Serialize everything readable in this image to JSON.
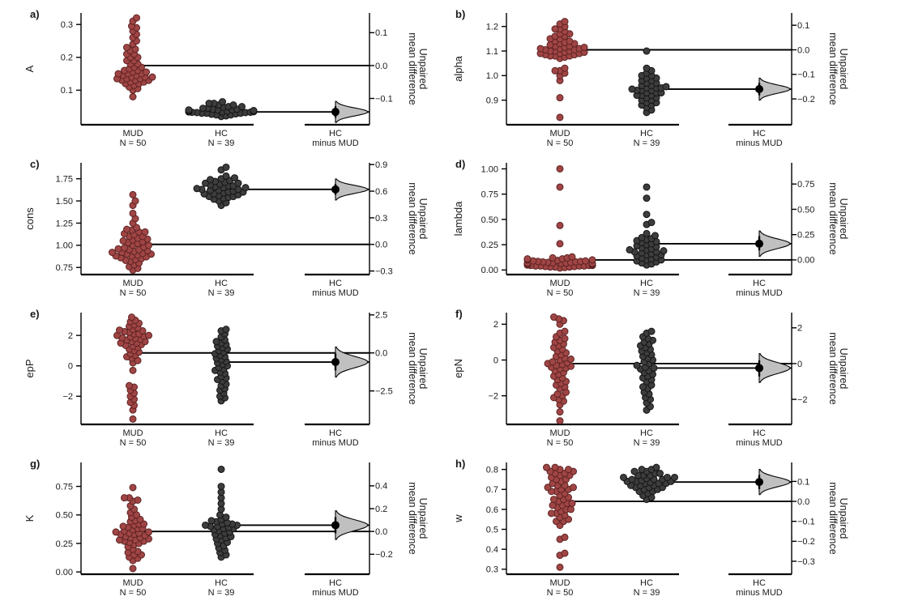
{
  "figure": {
    "right_axis_label_line1": "Unpaired",
    "right_axis_label_line2": "mean difference",
    "x_groups": [
      {
        "label": "MUD",
        "sublabel": "N = 50"
      },
      {
        "label": "HC",
        "sublabel": "N = 39"
      },
      {
        "label": "HC",
        "sublabel": "minus MUD"
      }
    ],
    "colors": {
      "mud_fill": "#a04545",
      "mud_stroke": "#5e2323",
      "hc_fill": "#3d3d3d",
      "hc_stroke": "#151515",
      "violin_fill": "#c0c0c0",
      "line": "#000000",
      "text": "#1a1a1a"
    }
  },
  "chart_data": [
    {
      "panel": "a)",
      "type": "swarm-estimation",
      "ylabel": "A",
      "ylim": [
        -0.005,
        0.335
      ],
      "yticks": [
        0.1,
        0.2,
        0.3
      ],
      "ytick_dec": 1,
      "right_ticks": [
        0.1,
        0.0,
        -0.1
      ],
      "rtick_dec": 1,
      "mud_mean": 0.175,
      "hc_mean": 0.034,
      "diff": -0.141,
      "diff_ci": [
        -0.158,
        -0.124
      ],
      "mud_values": [
        0.08,
        0.1,
        0.105,
        0.11,
        0.115,
        0.12,
        0.12,
        0.125,
        0.125,
        0.13,
        0.13,
        0.13,
        0.135,
        0.135,
        0.135,
        0.14,
        0.14,
        0.14,
        0.145,
        0.145,
        0.15,
        0.15,
        0.15,
        0.155,
        0.155,
        0.16,
        0.16,
        0.165,
        0.17,
        0.17,
        0.18,
        0.18,
        0.19,
        0.19,
        0.2,
        0.2,
        0.21,
        0.21,
        0.22,
        0.225,
        0.23,
        0.24,
        0.25,
        0.26,
        0.27,
        0.28,
        0.29,
        0.295,
        0.31,
        0.32
      ],
      "hc_values": [
        0.02,
        0.022,
        0.025,
        0.025,
        0.027,
        0.028,
        0.03,
        0.03,
        0.03,
        0.032,
        0.032,
        0.033,
        0.033,
        0.034,
        0.034,
        0.035,
        0.035,
        0.035,
        0.036,
        0.036,
        0.037,
        0.037,
        0.038,
        0.038,
        0.04,
        0.04,
        0.04,
        0.042,
        0.042,
        0.045,
        0.045,
        0.048,
        0.05,
        0.05,
        0.055,
        0.055,
        0.06,
        0.06,
        0.065
      ]
    },
    {
      "panel": "b)",
      "type": "swarm-estimation",
      "ylabel": "alpha",
      "ylim": [
        0.8,
        1.255
      ],
      "yticks": [
        0.9,
        1.0,
        1.1,
        1.2
      ],
      "ytick_dec": 1,
      "right_ticks": [
        0.1,
        0.0,
        -0.1,
        -0.2
      ],
      "rtick_dec": 1,
      "mud_mean": 1.105,
      "hc_mean": 0.945,
      "diff": -0.16,
      "diff_ci": [
        -0.185,
        -0.135
      ],
      "mud_values": [
        0.83,
        0.91,
        0.98,
        1.0,
        1.01,
        1.02,
        1.02,
        1.03,
        1.07,
        1.075,
        1.08,
        1.08,
        1.08,
        1.085,
        1.085,
        1.09,
        1.09,
        1.09,
        1.095,
        1.095,
        1.1,
        1.1,
        1.1,
        1.105,
        1.105,
        1.11,
        1.11,
        1.11,
        1.115,
        1.115,
        1.12,
        1.12,
        1.125,
        1.13,
        1.13,
        1.135,
        1.14,
        1.14,
        1.15,
        1.15,
        1.16,
        1.16,
        1.17,
        1.17,
        1.18,
        1.19,
        1.19,
        1.2,
        1.21,
        1.22
      ],
      "hc_values": [
        0.85,
        0.86,
        0.87,
        0.88,
        0.88,
        0.89,
        0.89,
        0.9,
        0.9,
        0.91,
        0.91,
        0.92,
        0.92,
        0.92,
        0.93,
        0.93,
        0.93,
        0.94,
        0.94,
        0.94,
        0.945,
        0.95,
        0.95,
        0.95,
        0.955,
        0.96,
        0.96,
        0.97,
        0.97,
        0.98,
        0.98,
        0.99,
        0.99,
        1.0,
        1.0,
        1.01,
        1.02,
        1.03,
        1.1
      ]
    },
    {
      "panel": "c)",
      "type": "swarm-estimation",
      "ylabel": "cons",
      "ylim": [
        0.67,
        1.93
      ],
      "yticks": [
        0.75,
        1.0,
        1.25,
        1.5,
        1.75
      ],
      "ytick_dec": 2,
      "right_ticks": [
        0.9,
        0.6,
        0.3,
        0.0,
        -0.3
      ],
      "rtick_dec": 1,
      "mud_mean": 1.01,
      "hc_mean": 1.63,
      "diff": 0.62,
      "diff_ci": [
        0.56,
        0.68
      ],
      "mud_values": [
        0.72,
        0.74,
        0.76,
        0.78,
        0.8,
        0.82,
        0.83,
        0.84,
        0.85,
        0.86,
        0.87,
        0.88,
        0.88,
        0.89,
        0.9,
        0.9,
        0.91,
        0.92,
        0.92,
        0.93,
        0.94,
        0.95,
        0.95,
        0.96,
        0.97,
        0.98,
        1.0,
        1.0,
        1.02,
        1.03,
        1.04,
        1.05,
        1.06,
        1.07,
        1.08,
        1.1,
        1.1,
        1.12,
        1.13,
        1.15,
        1.15,
        1.17,
        1.18,
        1.2,
        1.25,
        1.3,
        1.36,
        1.45,
        1.5,
        1.57
      ],
      "hc_values": [
        1.45,
        1.48,
        1.5,
        1.52,
        1.53,
        1.54,
        1.55,
        1.55,
        1.56,
        1.57,
        1.58,
        1.58,
        1.59,
        1.6,
        1.6,
        1.61,
        1.62,
        1.62,
        1.63,
        1.63,
        1.64,
        1.65,
        1.65,
        1.66,
        1.67,
        1.67,
        1.68,
        1.69,
        1.7,
        1.7,
        1.71,
        1.72,
        1.73,
        1.74,
        1.75,
        1.76,
        1.78,
        1.85,
        1.88
      ]
    },
    {
      "panel": "d)",
      "type": "swarm-estimation",
      "ylabel": "lambda",
      "ylim": [
        -0.045,
        1.06
      ],
      "yticks": [
        0.0,
        0.25,
        0.5,
        0.75,
        1.0
      ],
      "ytick_dec": 2,
      "right_ticks": [
        0.75,
        0.5,
        0.25,
        0.0
      ],
      "rtick_dec": 2,
      "mud_mean": 0.1,
      "hc_mean": 0.26,
      "diff": 0.16,
      "diff_ci": [
        0.095,
        0.235
      ],
      "mud_values": [
        0.02,
        0.025,
        0.03,
        0.03,
        0.03,
        0.035,
        0.035,
        0.04,
        0.04,
        0.04,
        0.04,
        0.045,
        0.045,
        0.045,
        0.05,
        0.05,
        0.05,
        0.05,
        0.055,
        0.055,
        0.055,
        0.06,
        0.06,
        0.06,
        0.065,
        0.065,
        0.07,
        0.07,
        0.07,
        0.075,
        0.075,
        0.08,
        0.08,
        0.085,
        0.085,
        0.09,
        0.09,
        0.095,
        0.1,
        0.1,
        0.105,
        0.11,
        0.11,
        0.12,
        0.12,
        0.13,
        0.26,
        0.44,
        0.82,
        1.0
      ],
      "hc_values": [
        0.05,
        0.06,
        0.07,
        0.08,
        0.09,
        0.1,
        0.1,
        0.11,
        0.12,
        0.13,
        0.14,
        0.15,
        0.15,
        0.16,
        0.17,
        0.18,
        0.18,
        0.19,
        0.2,
        0.2,
        0.21,
        0.22,
        0.23,
        0.24,
        0.25,
        0.26,
        0.27,
        0.28,
        0.29,
        0.3,
        0.31,
        0.32,
        0.34,
        0.36,
        0.45,
        0.47,
        0.55,
        0.71,
        0.82
      ]
    },
    {
      "panel": "e)",
      "type": "swarm-estimation",
      "ylabel": "epP",
      "ylim": [
        -3.85,
        3.5
      ],
      "yticks": [
        -2,
        0,
        2
      ],
      "ytick_dec": 0,
      "right_ticks": [
        2.5,
        0.0,
        -2.5
      ],
      "rtick_dec": 1,
      "mud_mean": 0.85,
      "hc_mean": 0.25,
      "diff": -0.6,
      "diff_ci": [
        -1.15,
        -0.05
      ],
      "mud_values": [
        -3.5,
        -2.9,
        -2.6,
        -2.4,
        -2.2,
        -2.0,
        -1.8,
        -1.6,
        -1.4,
        -1.3,
        -0.3,
        0.2,
        0.35,
        0.5,
        0.6,
        0.7,
        0.8,
        0.9,
        1.0,
        1.1,
        1.2,
        1.3,
        1.35,
        1.4,
        1.5,
        1.5,
        1.6,
        1.6,
        1.7,
        1.75,
        1.8,
        1.85,
        1.9,
        1.95,
        2.0,
        2.0,
        2.1,
        2.1,
        2.2,
        2.25,
        2.3,
        2.35,
        2.4,
        2.5,
        2.6,
        2.7,
        2.8,
        2.9,
        3.0,
        3.2
      ],
      "hc_values": [
        -2.3,
        -2.1,
        -2.0,
        -1.8,
        -1.6,
        -1.5,
        -1.3,
        -1.2,
        -1.0,
        -0.9,
        -0.8,
        -0.7,
        -0.5,
        -0.4,
        -0.3,
        -0.2,
        -0.1,
        0.0,
        0.1,
        0.2,
        0.3,
        0.4,
        0.5,
        0.6,
        0.7,
        0.8,
        0.9,
        1.0,
        1.1,
        1.2,
        1.3,
        1.4,
        1.5,
        1.6,
        1.7,
        1.9,
        2.1,
        2.3,
        2.4
      ]
    },
    {
      "panel": "f)",
      "type": "swarm-estimation",
      "ylabel": "epN",
      "ylim": [
        -3.6,
        2.65
      ],
      "yticks": [
        -2,
        0,
        2
      ],
      "ytick_dec": 0,
      "right_ticks": [
        2,
        0,
        -2
      ],
      "rtick_dec": 0,
      "mud_mean": -0.2,
      "hc_mean": -0.45,
      "diff": -0.25,
      "diff_ci": [
        -0.72,
        0.18
      ],
      "mud_values": [
        -3.4,
        -2.9,
        -2.5,
        -2.3,
        -2.2,
        -2.1,
        -2.0,
        -1.9,
        -1.8,
        -1.6,
        -1.5,
        -1.4,
        -1.3,
        -1.2,
        -1.1,
        -1.0,
        -0.9,
        -0.8,
        -0.7,
        -0.6,
        -0.5,
        -0.45,
        -0.4,
        -0.35,
        -0.3,
        -0.25,
        -0.2,
        -0.15,
        -0.1,
        0.0,
        0.05,
        0.1,
        0.2,
        0.3,
        0.4,
        0.5,
        0.6,
        0.7,
        0.8,
        0.9,
        1.0,
        1.1,
        1.2,
        1.3,
        1.5,
        1.6,
        2.0,
        2.2,
        2.3,
        2.4
      ],
      "hc_values": [
        -2.8,
        -2.6,
        -2.4,
        -2.2,
        -2.1,
        -1.9,
        -1.8,
        -1.6,
        -1.5,
        -1.4,
        -1.2,
        -1.1,
        -1.0,
        -0.9,
        -0.8,
        -0.7,
        -0.6,
        -0.5,
        -0.45,
        -0.4,
        -0.3,
        -0.2,
        -0.1,
        0.0,
        0.1,
        0.2,
        0.3,
        0.4,
        0.5,
        0.6,
        0.7,
        0.8,
        0.9,
        1.0,
        1.1,
        1.2,
        1.3,
        1.5,
        1.6
      ]
    },
    {
      "panel": "g)",
      "type": "swarm-estimation",
      "ylabel": "K",
      "ylim": [
        -0.02,
        0.96
      ],
      "yticks": [
        0.0,
        0.25,
        0.5,
        0.75
      ],
      "ytick_dec": 2,
      "right_ticks": [
        0.4,
        0.2,
        0.0,
        -0.2
      ],
      "rtick_dec": 1,
      "mud_mean": 0.355,
      "hc_mean": 0.41,
      "diff": 0.055,
      "diff_ci": [
        -0.015,
        0.125
      ],
      "mud_values": [
        0.03,
        0.1,
        0.12,
        0.13,
        0.15,
        0.15,
        0.17,
        0.18,
        0.2,
        0.22,
        0.24,
        0.25,
        0.26,
        0.27,
        0.27,
        0.28,
        0.28,
        0.29,
        0.3,
        0.3,
        0.31,
        0.32,
        0.33,
        0.33,
        0.34,
        0.34,
        0.35,
        0.35,
        0.36,
        0.37,
        0.38,
        0.38,
        0.39,
        0.4,
        0.41,
        0.42,
        0.42,
        0.44,
        0.45,
        0.46,
        0.48,
        0.5,
        0.52,
        0.55,
        0.58,
        0.62,
        0.63,
        0.65,
        0.65,
        0.74
      ],
      "hc_values": [
        0.13,
        0.15,
        0.17,
        0.19,
        0.21,
        0.23,
        0.25,
        0.26,
        0.28,
        0.29,
        0.3,
        0.31,
        0.32,
        0.33,
        0.34,
        0.35,
        0.36,
        0.37,
        0.38,
        0.38,
        0.39,
        0.4,
        0.4,
        0.41,
        0.41,
        0.42,
        0.42,
        0.43,
        0.44,
        0.45,
        0.46,
        0.48,
        0.5,
        0.55,
        0.6,
        0.65,
        0.7,
        0.75,
        0.9
      ]
    },
    {
      "panel": "h)",
      "type": "swarm-estimation",
      "ylabel": "w",
      "ylim": [
        0.275,
        0.835
      ],
      "yticks": [
        0.3,
        0.4,
        0.5,
        0.6,
        0.7,
        0.8
      ],
      "ytick_dec": 1,
      "right_ticks": [
        0.1,
        0.0,
        -0.1,
        -0.2,
        -0.3
      ],
      "rtick_dec": 1,
      "mud_mean": 0.64,
      "hc_mean": 0.737,
      "diff": 0.097,
      "diff_ci": [
        0.062,
        0.132
      ],
      "mud_values": [
        0.31,
        0.37,
        0.38,
        0.45,
        0.46,
        0.52,
        0.54,
        0.54,
        0.55,
        0.56,
        0.57,
        0.58,
        0.58,
        0.59,
        0.6,
        0.6,
        0.61,
        0.62,
        0.62,
        0.63,
        0.63,
        0.64,
        0.65,
        0.65,
        0.66,
        0.67,
        0.68,
        0.69,
        0.69,
        0.7,
        0.7,
        0.71,
        0.71,
        0.72,
        0.72,
        0.73,
        0.74,
        0.75,
        0.75,
        0.76,
        0.77,
        0.77,
        0.78,
        0.78,
        0.79,
        0.79,
        0.8,
        0.8,
        0.81,
        0.81
      ],
      "hc_values": [
        0.65,
        0.66,
        0.67,
        0.68,
        0.69,
        0.69,
        0.7,
        0.7,
        0.71,
        0.71,
        0.71,
        0.72,
        0.72,
        0.72,
        0.73,
        0.73,
        0.73,
        0.735,
        0.74,
        0.74,
        0.74,
        0.745,
        0.75,
        0.75,
        0.75,
        0.755,
        0.76,
        0.76,
        0.76,
        0.77,
        0.77,
        0.77,
        0.78,
        0.78,
        0.79,
        0.79,
        0.8,
        0.8,
        0.81
      ]
    }
  ]
}
